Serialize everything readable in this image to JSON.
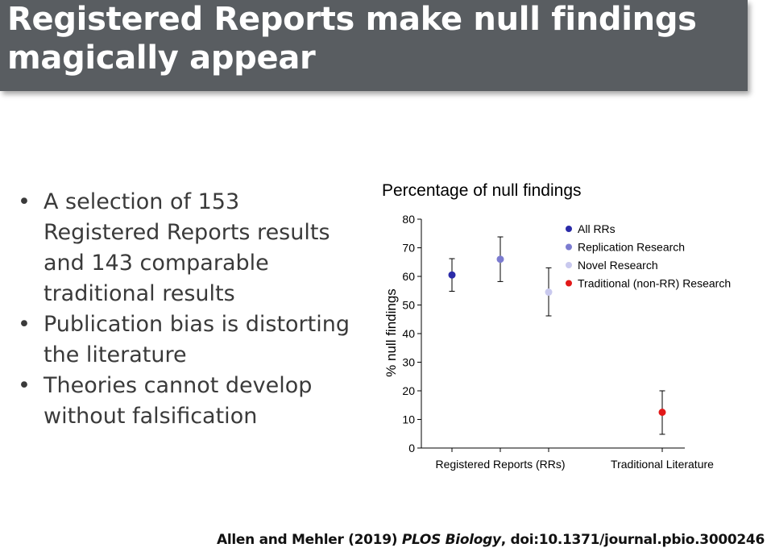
{
  "slide": {
    "title": "Registered Reports make null findings magically appear",
    "bullets": [
      "A selection of 153 Registered Reports results and 143 comparable traditional results",
      "Publication bias is distorting the literature",
      "Theories cannot develop without falsification"
    ],
    "bullet_symbol": "•",
    "citation": {
      "authors": "Allen and Mehler (2019)",
      "journal": "PLOS Biology",
      "doi": ", doi:10.1371/journal.pbio.3000246"
    }
  },
  "chart_data": {
    "type": "scatter",
    "title": "Percentage of null findings",
    "xlabel": "",
    "ylabel": "% null findings",
    "ylim": [
      0,
      80
    ],
    "yticks": [
      0,
      10,
      20,
      30,
      40,
      50,
      60,
      70,
      80
    ],
    "categories": [
      "Registered Reports (RRs)",
      "Traditional Literature"
    ],
    "grid": false,
    "legend_position": "top-right",
    "series": [
      {
        "name": "All RRs",
        "category": "Registered Reports (RRs)",
        "value": 60.5,
        "ci": [
          54.8,
          66.2
        ],
        "color": "#2b2ba8"
      },
      {
        "name": "Replication Research",
        "category": "Registered Reports (RRs)",
        "value": 66,
        "ci": [
          58.2,
          73.8
        ],
        "color": "#7b7bd0"
      },
      {
        "name": "Novel Research",
        "category": "Registered Reports (RRs)",
        "value": 54.5,
        "ci": [
          46.2,
          63.0
        ],
        "color": "#c9c9ee"
      },
      {
        "name": "Traditional (non-RR) Research",
        "category": "Traditional Literature",
        "value": 12.5,
        "ci": [
          4.8,
          20.0
        ],
        "color": "#e21818"
      }
    ]
  }
}
